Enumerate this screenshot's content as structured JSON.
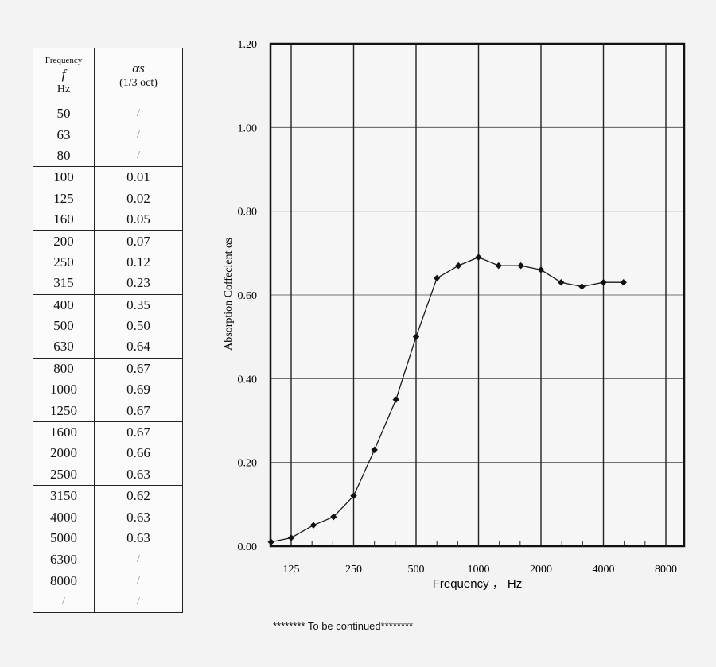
{
  "table": {
    "header_frequency": "Frequency",
    "header_f": "f",
    "header_unit": "Hz",
    "header_alpha": "αs",
    "header_band": "(1/3 oct)",
    "rows": [
      {
        "f": "50",
        "a": "/"
      },
      {
        "f": "63",
        "a": "/"
      },
      {
        "f": "80",
        "a": "/"
      },
      {
        "f": "100",
        "a": "0.01"
      },
      {
        "f": "125",
        "a": "0.02"
      },
      {
        "f": "160",
        "a": "0.05"
      },
      {
        "f": "200",
        "a": "0.07"
      },
      {
        "f": "250",
        "a": "0.12"
      },
      {
        "f": "315",
        "a": "0.23"
      },
      {
        "f": "400",
        "a": "0.35"
      },
      {
        "f": "500",
        "a": "0.50"
      },
      {
        "f": "630",
        "a": "0.64"
      },
      {
        "f": "800",
        "a": "0.67"
      },
      {
        "f": "1000",
        "a": "0.69"
      },
      {
        "f": "1250",
        "a": "0.67"
      },
      {
        "f": "1600",
        "a": "0.67"
      },
      {
        "f": "2000",
        "a": "0.66"
      },
      {
        "f": "2500",
        "a": "0.63"
      },
      {
        "f": "3150",
        "a": "0.62"
      },
      {
        "f": "4000",
        "a": "0.63"
      },
      {
        "f": "5000",
        "a": "0.63"
      },
      {
        "f": "6300",
        "a": "/"
      },
      {
        "f": "8000",
        "a": "/"
      },
      {
        "f": "/",
        "a": "/"
      }
    ]
  },
  "chart_data": {
    "type": "line",
    "xlabel": "Frequency ， Hz",
    "ylabel": "Absorption Coffecient  αs",
    "x_scale": "log (1/3-octave bands)",
    "x_ticks": [
      "125",
      "250",
      "500",
      "1000",
      "2000",
      "4000",
      "8000"
    ],
    "y_ticks": [
      "0.00",
      "0.20",
      "0.40",
      "0.60",
      "0.80",
      "1.00",
      "1.20"
    ],
    "ylim": [
      0,
      1.2
    ],
    "grid": true,
    "legend": "none",
    "series": [
      {
        "x": [
          100,
          125,
          160,
          200,
          250,
          315,
          400,
          500,
          630,
          800,
          1000,
          1250,
          1600,
          2000,
          2500,
          3150,
          4000,
          5000
        ],
        "y": [
          0.01,
          0.02,
          0.05,
          0.07,
          0.12,
          0.23,
          0.35,
          0.5,
          0.64,
          0.67,
          0.69,
          0.67,
          0.67,
          0.66,
          0.63,
          0.62,
          0.63,
          0.63
        ]
      }
    ],
    "line_color": "#1a1a1a"
  },
  "footnote": "******** To be continued********"
}
